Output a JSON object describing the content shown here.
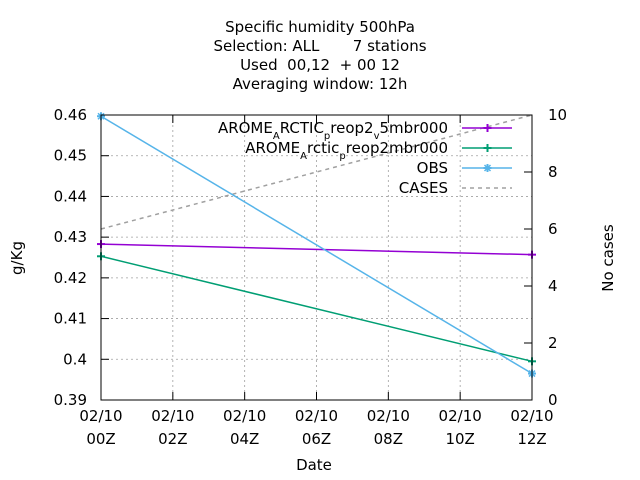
{
  "chart_data": {
    "type": "line",
    "title_lines": [
      "Specific humidity 500hPa",
      "Selection: ALL       7 stations",
      "Used  00,12  + 00 12",
      "Averaging window: 12h"
    ],
    "xlabel": "Date",
    "ylabel": "g/Kg",
    "y2label": "No cases",
    "x_ticks": [
      {
        "t": 0,
        "line1": "02/10",
        "line2": "00Z"
      },
      {
        "t": 2,
        "line1": "02/10",
        "line2": "02Z"
      },
      {
        "t": 4,
        "line1": "02/10",
        "line2": "04Z"
      },
      {
        "t": 6,
        "line1": "02/10",
        "line2": "06Z"
      },
      {
        "t": 8,
        "line1": "02/10",
        "line2": "08Z"
      },
      {
        "t": 10,
        "line1": "02/10",
        "line2": "10Z"
      },
      {
        "t": 12,
        "line1": "02/10",
        "line2": "12Z"
      }
    ],
    "xlim": [
      0,
      12
    ],
    "ylim": [
      0.39,
      0.46
    ],
    "y_ticks": [
      "0.39",
      "0.4",
      "0.41",
      "0.42",
      "0.43",
      "0.44",
      "0.45",
      "0.46"
    ],
    "y2lim": [
      0,
      10
    ],
    "y2_ticks": [
      "0",
      "2",
      "4",
      "6",
      "8",
      "10"
    ],
    "grid": true,
    "legend_position": "top-right",
    "series": [
      {
        "name_parts": [
          {
            "text": "AROME",
            "sub": false
          },
          {
            "text": "A",
            "sub": true
          },
          {
            "text": "RCTIC",
            "sub": false
          },
          {
            "text": "p",
            "sub": true
          },
          {
            "text": "reop2",
            "sub": false
          },
          {
            "text": "v",
            "sub": true
          },
          {
            "text": "5mbr000",
            "sub": false
          }
        ],
        "axis": "y1",
        "color": "#9400d3",
        "marker": "plus",
        "x": [
          0,
          12
        ],
        "y": [
          0.4283,
          0.4257
        ]
      },
      {
        "name_parts": [
          {
            "text": "AROME",
            "sub": false
          },
          {
            "text": "A",
            "sub": true
          },
          {
            "text": "rctic",
            "sub": false
          },
          {
            "text": "p",
            "sub": true
          },
          {
            "text": "reop2mbr000",
            "sub": false
          }
        ],
        "axis": "y1",
        "color": "#009e73",
        "marker": "plus",
        "x": [
          0,
          12
        ],
        "y": [
          0.4253,
          0.3995
        ]
      },
      {
        "name_parts": [
          {
            "text": "OBS",
            "sub": false
          }
        ],
        "axis": "y1",
        "color": "#56b4e9",
        "marker": "star",
        "x": [
          0,
          12
        ],
        "y": [
          0.4597,
          0.3965
        ]
      },
      {
        "name_parts": [
          {
            "text": "CASES",
            "sub": false
          }
        ],
        "axis": "y2",
        "color": "#a0a0a0",
        "marker": "none",
        "dash": true,
        "x": [
          0,
          12
        ],
        "y": [
          6,
          10
        ]
      }
    ]
  }
}
